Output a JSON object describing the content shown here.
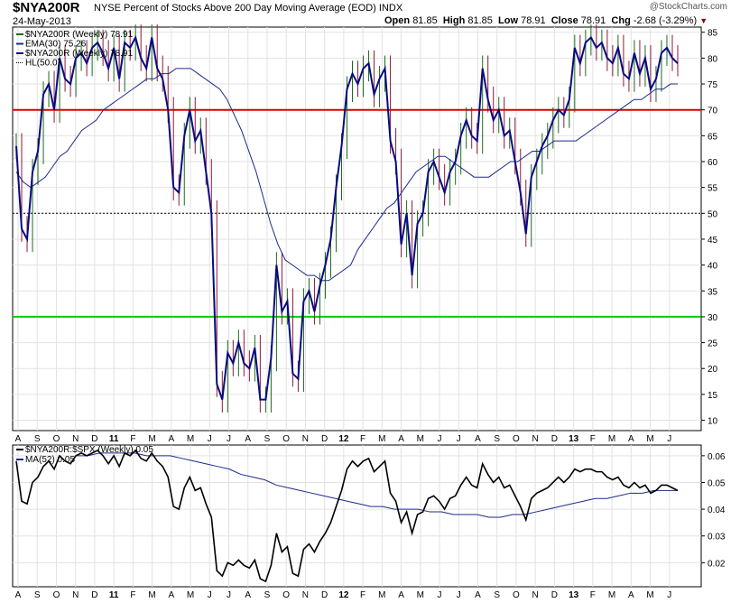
{
  "header": {
    "symbol": "$NYA200R",
    "description": "NYSE Percent of Stocks Above 200 Day Moving Average (EOD)",
    "exchange": "INDX",
    "date": "24-May-2013",
    "open_label": "Open",
    "open": "81.85",
    "high_label": "High",
    "high": "81.85",
    "low_label": "Low",
    "low": "78.91",
    "close_label": "Close",
    "close": "78.91",
    "chg_label": "Chg",
    "chg": "-2.68 (-3.29%)",
    "watermark": "@StockCharts.com"
  },
  "colors": {
    "price_line": "#0a0a80",
    "ema_line": "#1e2a8a",
    "bar_up": "#1a6b1a",
    "bar_down": "#8b1a3a",
    "hline_upper": "#dd0000",
    "hline_lower": "#00cc00",
    "ratio_line": "#000000",
    "ratio_ma": "#1e2a8a"
  },
  "x_labels": [
    "A",
    "S",
    "O",
    "N",
    "D",
    "11",
    "F",
    "M",
    "A",
    "M",
    "J",
    "J",
    "A",
    "S",
    "O",
    "N",
    "D",
    "12",
    "F",
    "M",
    "A",
    "M",
    "J",
    "J",
    "A",
    "S",
    "O",
    "N",
    "D",
    "13",
    "F",
    "M",
    "A",
    "M",
    "J"
  ],
  "chart_data": [
    {
      "type": "line",
      "legend": [
        {
          "label": "$NYA200R (Weekly) 78.91"
        },
        {
          "label": "EMA(30) 75.26"
        },
        {
          "label": "$NYA200R (Weekly) 78.91"
        },
        {
          "label": "HL(50.0)"
        }
      ],
      "ylim": [
        8,
        86
      ],
      "yticks": [
        10,
        15,
        20,
        25,
        30,
        35,
        40,
        45,
        50,
        55,
        60,
        65,
        70,
        75,
        80,
        85
      ],
      "hlines": [
        70,
        50,
        30
      ],
      "series": [
        {
          "name": "$NYA200R (Weekly)",
          "values": [
            63,
            47,
            45,
            58,
            62,
            73,
            75,
            70,
            80,
            76,
            75,
            80,
            81,
            79,
            82,
            83,
            81,
            78,
            82,
            76,
            83,
            82,
            84,
            80,
            78,
            84,
            78,
            76,
            70,
            55,
            54,
            65,
            70,
            64,
            66,
            58,
            50,
            17,
            14,
            23,
            21,
            25,
            21,
            20,
            24,
            14,
            14,
            22,
            40,
            31,
            33,
            19,
            18,
            33,
            35,
            31,
            36,
            40,
            45,
            55,
            63,
            74,
            77,
            75,
            78,
            79,
            73,
            76,
            78,
            64,
            60,
            44,
            50,
            38,
            48,
            50,
            58,
            60,
            57,
            54,
            58,
            60,
            65,
            68,
            65,
            64,
            78,
            72,
            68,
            70,
            65,
            66,
            60,
            54,
            46,
            57,
            60,
            63,
            65,
            68,
            70,
            69,
            72,
            82,
            79,
            83,
            84,
            82,
            83,
            80,
            79,
            82,
            77,
            76,
            81,
            77,
            80,
            74,
            76,
            81,
            82,
            80,
            79
          ]
        },
        {
          "name": "EMA(30)",
          "values": [
            58,
            56,
            55,
            56,
            57,
            59,
            61,
            62,
            64,
            66,
            67,
            68,
            70,
            71,
            72,
            73,
            74,
            75,
            76,
            76,
            77,
            77,
            78,
            78,
            78,
            77,
            76,
            75,
            74,
            72,
            69,
            66,
            62,
            58,
            53,
            48,
            44,
            41,
            40,
            39,
            38,
            38,
            37,
            37,
            38,
            39,
            40,
            43,
            45,
            47,
            49,
            51,
            52,
            54,
            56,
            58,
            59,
            60,
            61,
            61,
            60,
            59,
            58,
            57,
            57,
            57,
            58,
            59,
            60,
            60,
            61,
            62,
            62,
            63,
            64,
            64,
            64,
            64,
            65,
            66,
            67,
            68,
            69,
            70,
            71,
            72,
            72,
            73,
            74,
            74,
            75,
            75
          ]
        },
        {
          "name": "HL(50.0)",
          "values": [
            50
          ]
        }
      ]
    },
    {
      "type": "line",
      "legend": [
        {
          "label": "$NYA200R:$SPX (Weekly) 0.05"
        },
        {
          "label": "MA(52) 0.05"
        }
      ],
      "ylim": [
        0.011,
        0.064
      ],
      "yticks": [
        0.02,
        0.03,
        0.04,
        0.05,
        0.06
      ],
      "series": [
        {
          "name": "$NYA200R:$SPX (Weekly)",
          "values": [
            0.058,
            0.043,
            0.042,
            0.05,
            0.052,
            0.056,
            0.058,
            0.055,
            0.06,
            0.058,
            0.057,
            0.06,
            0.061,
            0.06,
            0.061,
            0.062,
            0.06,
            0.057,
            0.06,
            0.056,
            0.061,
            0.06,
            0.062,
            0.059,
            0.058,
            0.061,
            0.058,
            0.056,
            0.052,
            0.041,
            0.04,
            0.048,
            0.052,
            0.047,
            0.048,
            0.042,
            0.037,
            0.017,
            0.015,
            0.02,
            0.019,
            0.021,
            0.019,
            0.018,
            0.021,
            0.014,
            0.013,
            0.019,
            0.031,
            0.024,
            0.026,
            0.016,
            0.015,
            0.025,
            0.027,
            0.024,
            0.028,
            0.031,
            0.035,
            0.041,
            0.047,
            0.055,
            0.058,
            0.056,
            0.058,
            0.059,
            0.054,
            0.056,
            0.058,
            0.046,
            0.043,
            0.035,
            0.039,
            0.031,
            0.038,
            0.039,
            0.044,
            0.045,
            0.043,
            0.04,
            0.044,
            0.045,
            0.049,
            0.052,
            0.049,
            0.048,
            0.057,
            0.053,
            0.05,
            0.052,
            0.048,
            0.049,
            0.045,
            0.041,
            0.036,
            0.044,
            0.046,
            0.047,
            0.048,
            0.05,
            0.052,
            0.05,
            0.052,
            0.055,
            0.054,
            0.055,
            0.055,
            0.054,
            0.054,
            0.052,
            0.051,
            0.052,
            0.049,
            0.048,
            0.05,
            0.048,
            0.049,
            0.046,
            0.047,
            0.049,
            0.049,
            0.048,
            0.047
          ]
        },
        {
          "name": "MA(52)",
          "values": [
            0.06,
            0.06,
            0.061,
            0.061,
            0.061,
            0.061,
            0.06,
            0.06,
            0.06,
            0.059,
            0.058,
            0.057,
            0.056,
            0.055,
            0.053,
            0.052,
            0.051,
            0.049,
            0.048,
            0.047,
            0.046,
            0.045,
            0.044,
            0.043,
            0.042,
            0.041,
            0.041,
            0.04,
            0.04,
            0.04,
            0.039,
            0.039,
            0.038,
            0.038,
            0.038,
            0.037,
            0.037,
            0.038,
            0.038,
            0.039,
            0.04,
            0.041,
            0.042,
            0.043,
            0.044,
            0.044,
            0.045,
            0.046,
            0.046,
            0.047,
            0.047,
            0.047
          ]
        }
      ]
    }
  ]
}
